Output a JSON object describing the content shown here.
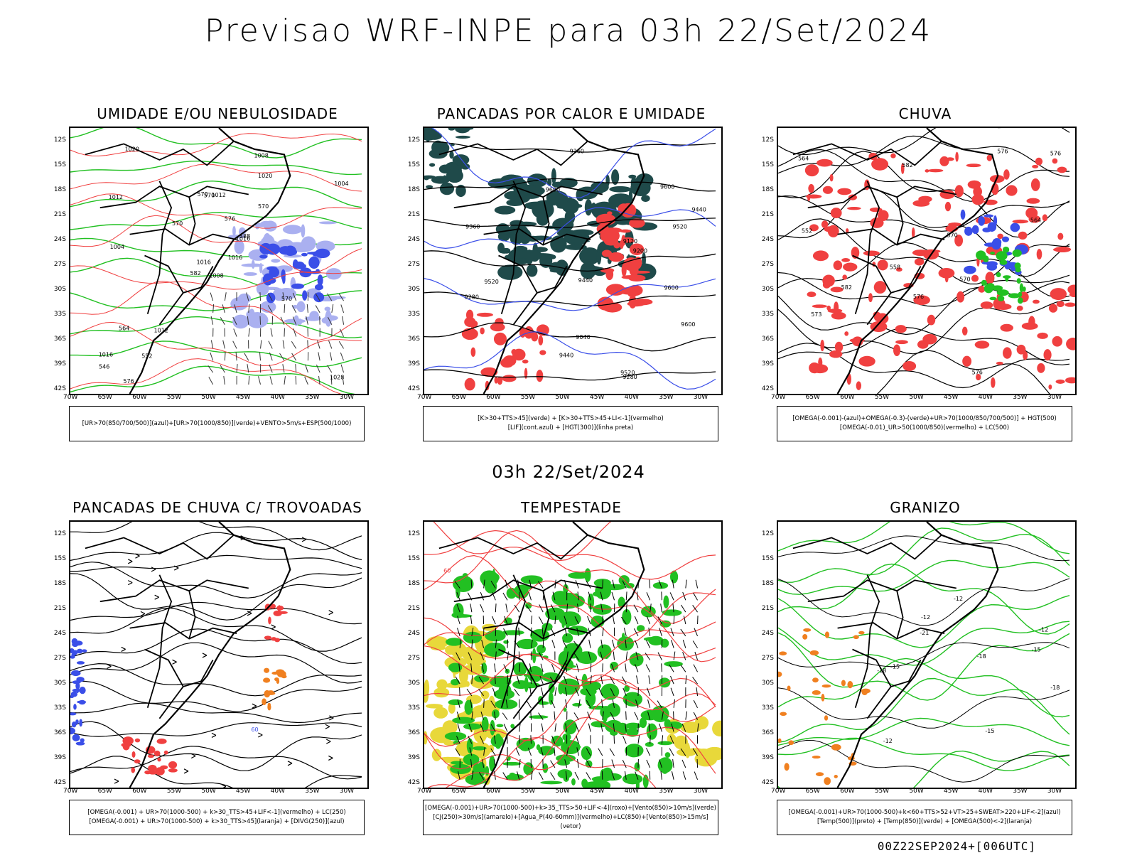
{
  "title": "Previsao WRF-INPE  para 03h 22/Set/2024",
  "mid_date": "03h 22/Set/2024",
  "run_stamp": "00Z22SEP2024+[006UTC]",
  "axes": {
    "lat": [
      "12S",
      "15S",
      "18S",
      "21S",
      "24S",
      "27S",
      "30S",
      "33S",
      "36S",
      "39S",
      "42S"
    ],
    "lon": [
      "70W",
      "65W",
      "60W",
      "55W",
      "50W",
      "45W",
      "40W",
      "35W",
      "30W"
    ]
  },
  "panels": [
    {
      "id": "umidade",
      "title": "UMIDADE E/OU NEBULOSIDADE",
      "legend": [
        "[UR>70(850/700/500)](azul)+[UR>70(1000/850)](verde)+VENTO>5m/s+ESP(500/1000)"
      ],
      "labels": [
        "1008",
        "1012",
        "1016",
        "1016",
        "1016",
        "1012",
        "1008",
        "1012",
        "1020",
        "1016",
        "1020",
        "1028",
        "1004",
        "1004",
        "582",
        "570",
        "576",
        "570",
        "576",
        "564",
        "570",
        "546",
        "552",
        "570",
        "588",
        "570"
      ]
    },
    {
      "id": "pancadas-calor",
      "title": "PANCADAS POR CALOR E UMIDADE",
      "legend": [
        "[K>30+TTS>45](verde) + [K>30+TTS>45+LI<-1](vermelho)",
        "[LIF](cont.azul) + [HGT(300)](linha preta)"
      ],
      "labels": [
        "9600",
        "9600",
        "9600",
        "9520",
        "9600",
        "9520",
        "9440",
        "9520",
        "9440",
        "9440",
        "9360",
        "9120",
        "9200",
        "9280",
        "9040",
        "9360",
        "9280"
      ]
    },
    {
      "id": "chuva",
      "title": "CHUVA",
      "legend": [
        "[OMEGA(-0.001)-(azul)+OMEGA(-0.3)-(verde)+UR>70(1000/850/700/500)] + HGT(500)",
        "[OMEGA(-0.01)_UR>50(1000/850)(vermelho) + LC(500)"
      ],
      "labels": [
        "582",
        "582",
        "576",
        "570",
        "564",
        "576",
        "576",
        "573",
        "570",
        "576",
        "564",
        "558",
        "552"
      ]
    },
    {
      "id": "trovoadas",
      "title": "PANCADAS DE CHUVA C/ TROVOADAS",
      "legend": [
        "[OMEGA(-0.001) + UR>70(1000-500) + k>30_TTS>45+LIF<-1](vermelho) + LC(250)",
        "[OMEGA(-0.001) + UR>70(1000-500) + k>30_TTS>45](laranja) + [DIVG(250)](azul)"
      ],
      "labels": [
        "60"
      ]
    },
    {
      "id": "tempestade",
      "title": "TEMPESTADE",
      "legend": [
        "[OMEGA(-0.001)+UR>70(1000-500)+k>35_TTS>50+LIF<-4](roxo)+[Vento(850)>10m/s](verde)",
        "[CJ(250)>30m/s](amarelo)+[Agua_P(40-60mm)](vermelho)+LC(850)+[Vento(850)>15m/s](vetor)"
      ],
      "labels": [
        "60"
      ]
    },
    {
      "id": "granizo",
      "title": "GRANIZO",
      "legend": [
        "[OMEGA(-0.001)+UR>70(1000-500)+k<60+TTS>52+VT>25+SWEAT>220+LIF<-2](azul)",
        "[Temp(500)](preto) + [Temp(850)](verde) + [OMEGA(500)<-2](laranja)"
      ],
      "labels": [
        "-12",
        "-12",
        "-15",
        "-12",
        "-18",
        "-18",
        "-12",
        "-15",
        "-21",
        "-15",
        "-18"
      ]
    }
  ],
  "colors": {
    "blue": "#3a4ee8",
    "green": "#22c022",
    "red": "#f04040",
    "orange": "#f08020",
    "darkteal": "#1f4a4a",
    "lavender": "#aab0f0",
    "yellow": "#e8d83a",
    "black": "#000000"
  }
}
